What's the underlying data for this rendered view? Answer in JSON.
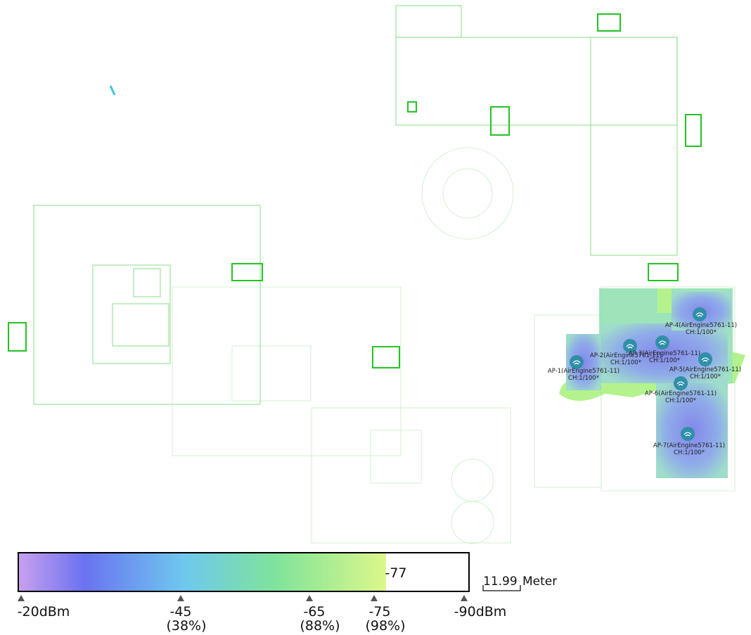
{
  "access_points": [
    {
      "label": "AP-1(AirEngine5761-11)",
      "channel": "CH:1/100*"
    },
    {
      "label": "AP-2(AirEngine5761-11)",
      "channel": "CH:1/100*"
    },
    {
      "label": "AP-3(AirEngine5761-11)",
      "channel": "CH:1/100*"
    },
    {
      "label": "AP-4(AirEngine5761-11)",
      "channel": "CH:1/100*"
    },
    {
      "label": "AP-5(AirEngine5761-11)",
      "channel": "CH:1/100*"
    },
    {
      "label": "AP-6(AirEngine5761-11)",
      "channel": "CH:1/100*"
    },
    {
      "label": "AP-7(AirEngine5761-11)",
      "channel": "CH:1/100*"
    }
  ],
  "legend": {
    "marker": "-77",
    "ticks": [
      {
        "label": "-20dBm"
      },
      {
        "label": "-45",
        "percent": "(38%)"
      },
      {
        "label": "-65",
        "percent": "(88%)"
      },
      {
        "label": "-75",
        "percent": "(98%)"
      },
      {
        "label": "-90dBm"
      }
    ]
  },
  "scale": {
    "value": "11.99",
    "unit": "Meter"
  }
}
